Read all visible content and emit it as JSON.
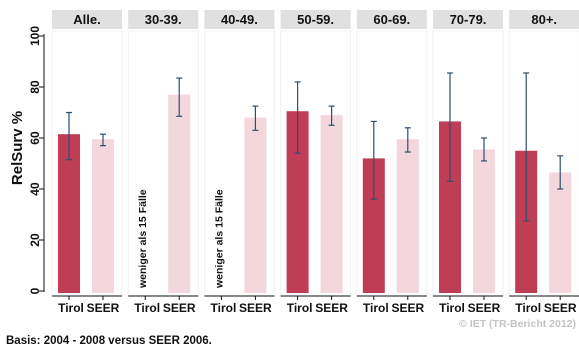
{
  "chart_data": {
    "type": "bar",
    "ylabel": "RelSurv %",
    "ylim": [
      0,
      100
    ],
    "yticks": [
      0,
      20,
      40,
      60,
      80,
      100
    ],
    "grid": false,
    "series_labels": [
      "Tirol",
      "SEER"
    ],
    "colors": {
      "Tirol": "#bf3d55",
      "SEER": "#f3d7dc",
      "error_bar": "#2c4f6e",
      "panel_header": "#e0e0e0"
    },
    "panels": [
      {
        "title": "Alle.",
        "Tirol": {
          "value": 61.5,
          "ci": [
            51.5,
            70
          ]
        },
        "SEER": {
          "value": 59.5,
          "ci": [
            57,
            61.5
          ]
        },
        "note": ""
      },
      {
        "title": "30-39.",
        "Tirol": null,
        "SEER": {
          "value": 77,
          "ci": [
            68.5,
            83.5
          ]
        },
        "note": "weniger als 15 Fälle"
      },
      {
        "title": "40-49.",
        "Tirol": null,
        "SEER": {
          "value": 68,
          "ci": [
            63,
            72.5
          ]
        },
        "note": "weniger als 15 Fälle"
      },
      {
        "title": "50-59.",
        "Tirol": {
          "value": 70.5,
          "ci": [
            54,
            82
          ]
        },
        "SEER": {
          "value": 69,
          "ci": [
            65,
            72.5
          ]
        },
        "note": ""
      },
      {
        "title": "60-69.",
        "Tirol": {
          "value": 52,
          "ci": [
            36,
            66.5
          ]
        },
        "SEER": {
          "value": 59.5,
          "ci": [
            54.5,
            64
          ]
        },
        "note": ""
      },
      {
        "title": "70-79.",
        "Tirol": {
          "value": 66.5,
          "ci": [
            43,
            85.5
          ]
        },
        "SEER": {
          "value": 55.5,
          "ci": [
            51,
            60
          ]
        },
        "note": ""
      },
      {
        "title": "80+.",
        "Tirol": {
          "value": 55,
          "ci": [
            27.5,
            85.5
          ]
        },
        "SEER": {
          "value": 46.5,
          "ci": [
            40,
            53
          ]
        },
        "note": ""
      }
    ]
  },
  "footer": {
    "basis": "Basis: 2004 - 2008 versus SEER 2006.",
    "credit": "© IET (TR-Bericht 2012)"
  }
}
